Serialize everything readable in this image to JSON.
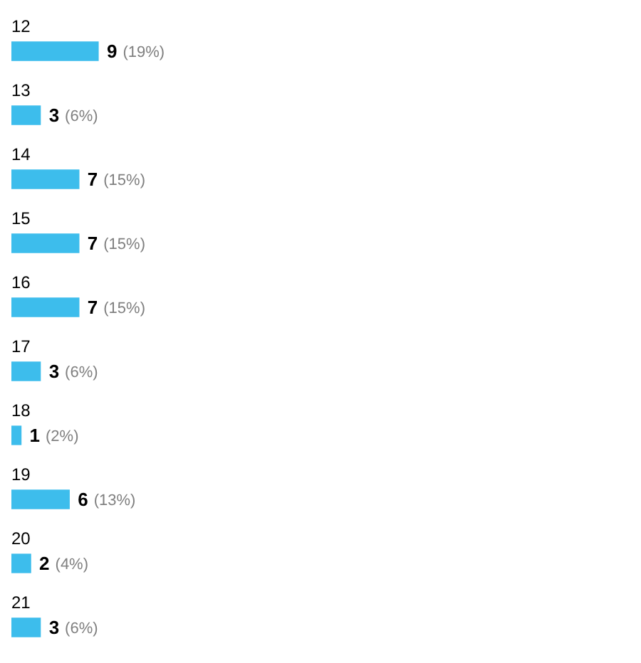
{
  "chart_data": {
    "type": "bar",
    "orientation": "horizontal",
    "categories": [
      "12",
      "13",
      "14",
      "15",
      "16",
      "17",
      "18",
      "19",
      "20",
      "21"
    ],
    "values": [
      9,
      3,
      7,
      7,
      7,
      3,
      1,
      6,
      2,
      3
    ],
    "color": "#3dbdec",
    "value_labels": [
      "9 (19%)",
      "3 (6%)",
      "7 (15%)",
      "7 (15%)",
      "7 (15%)",
      "3 (6%)",
      "1 (2%)",
      "6 (13%)",
      "2 (4%)",
      "3 (6%)"
    ]
  }
}
